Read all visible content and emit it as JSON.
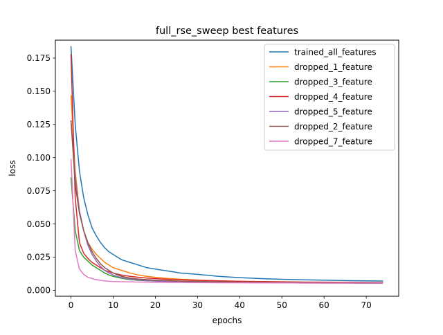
{
  "chart_data": {
    "type": "line",
    "title": "full_rse_sweep best features",
    "xlabel": "epochs",
    "ylabel": "loss",
    "xlim": [
      -3.7,
      77.7
    ],
    "ylim": [
      -0.0045,
      0.1885
    ],
    "xticks": [
      0,
      10,
      20,
      30,
      40,
      50,
      60,
      70
    ],
    "yticks": [
      0.0,
      0.025,
      0.05,
      0.075,
      0.1,
      0.125,
      0.15,
      0.175
    ],
    "ytick_labels": [
      "0.000",
      "0.025",
      "0.050",
      "0.075",
      "0.100",
      "0.125",
      "0.150",
      "0.175"
    ],
    "grid": false,
    "legend_position": "top-right",
    "x": [
      0,
      1,
      2,
      3,
      4,
      5,
      6,
      7,
      8,
      9,
      10,
      12,
      14,
      16,
      18,
      20,
      22,
      24,
      26,
      28,
      30,
      35,
      40,
      45,
      50,
      55,
      60,
      65,
      70,
      74
    ],
    "series": [
      {
        "name": "trained_all_features",
        "color": "#1f77b4",
        "values": [
          0.184,
          0.125,
          0.09,
          0.07,
          0.057,
          0.047,
          0.041,
          0.036,
          0.032,
          0.029,
          0.027,
          0.023,
          0.021,
          0.019,
          0.017,
          0.016,
          0.015,
          0.014,
          0.013,
          0.0125,
          0.012,
          0.0105,
          0.0095,
          0.0088,
          0.0083,
          0.0079,
          0.0076,
          0.0073,
          0.0071,
          0.007
        ]
      },
      {
        "name": "dropped_1_feature",
        "color": "#ff7f0e",
        "values": [
          0.147,
          0.09,
          0.06,
          0.045,
          0.036,
          0.031,
          0.027,
          0.024,
          0.021,
          0.019,
          0.017,
          0.015,
          0.013,
          0.0115,
          0.0105,
          0.0098,
          0.0092,
          0.0087,
          0.0083,
          0.008,
          0.0077,
          0.0071,
          0.0067,
          0.0064,
          0.0062,
          0.006,
          0.0058,
          0.0057,
          0.0056,
          0.0055
        ]
      },
      {
        "name": "dropped_3_feature",
        "color": "#2ca02c",
        "values": [
          0.085,
          0.045,
          0.03,
          0.025,
          0.022,
          0.019,
          0.017,
          0.015,
          0.013,
          0.0115,
          0.0105,
          0.009,
          0.008,
          0.0075,
          0.0072,
          0.007,
          0.0068,
          0.0067,
          0.0066,
          0.0065,
          0.0064,
          0.0062,
          0.0061,
          0.006,
          0.0059,
          0.0058,
          0.0057,
          0.0056,
          0.0055,
          0.0055
        ]
      },
      {
        "name": "dropped_4_feature",
        "color": "#d62728",
        "values": [
          0.178,
          0.07,
          0.036,
          0.028,
          0.024,
          0.021,
          0.019,
          0.017,
          0.015,
          0.014,
          0.013,
          0.0115,
          0.0105,
          0.0098,
          0.0092,
          0.0088,
          0.0084,
          0.0081,
          0.0079,
          0.0077,
          0.0075,
          0.0071,
          0.0068,
          0.0066,
          0.0064,
          0.0062,
          0.0061,
          0.006,
          0.0059,
          0.0058
        ]
      },
      {
        "name": "dropped_5_feature",
        "color": "#9467bd",
        "values": [
          0.128,
          0.085,
          0.06,
          0.045,
          0.034,
          0.027,
          0.022,
          0.018,
          0.015,
          0.013,
          0.0115,
          0.0095,
          0.0085,
          0.0078,
          0.0073,
          0.007,
          0.0067,
          0.0065,
          0.0063,
          0.0062,
          0.0061,
          0.0059,
          0.0058,
          0.0057,
          0.0056,
          0.0055,
          0.0054,
          0.0054,
          0.0053,
          0.0053
        ]
      },
      {
        "name": "dropped_2_feature",
        "color": "#8c564b",
        "values": [
          0.128,
          0.08,
          0.058,
          0.045,
          0.036,
          0.029,
          0.024,
          0.02,
          0.017,
          0.015,
          0.013,
          0.0105,
          0.0092,
          0.0085,
          0.008,
          0.0076,
          0.0073,
          0.0071,
          0.0069,
          0.0068,
          0.0067,
          0.0064,
          0.0062,
          0.0061,
          0.006,
          0.0059,
          0.0058,
          0.0057,
          0.0057,
          0.0056
        ]
      },
      {
        "name": "dropped_7_feature",
        "color": "#e377c2",
        "values": [
          0.099,
          0.03,
          0.016,
          0.012,
          0.0098,
          0.0088,
          0.008,
          0.0075,
          0.0071,
          0.0068,
          0.0066,
          0.0064,
          0.0063,
          0.0062,
          0.0061,
          0.006,
          0.006,
          0.0059,
          0.0059,
          0.0058,
          0.0058,
          0.0057,
          0.0057,
          0.0056,
          0.0056,
          0.0055,
          0.0055,
          0.0055,
          0.0054,
          0.0054
        ]
      }
    ]
  }
}
